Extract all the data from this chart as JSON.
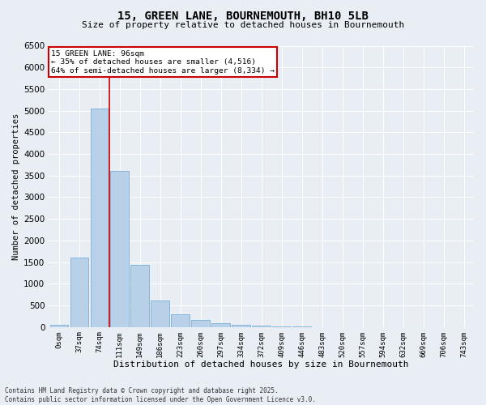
{
  "title_line1": "15, GREEN LANE, BOURNEMOUTH, BH10 5LB",
  "title_line2": "Size of property relative to detached houses in Bournemouth",
  "xlabel": "Distribution of detached houses by size in Bournemouth",
  "ylabel": "Number of detached properties",
  "bar_color": "#b8d0e8",
  "bar_edge_color": "#7aafd4",
  "background_color": "#e8eef4",
  "grid_color": "#ffffff",
  "annotation_box_color": "#cc0000",
  "vline_color": "#cc0000",
  "categories": [
    "0sqm",
    "37sqm",
    "74sqm",
    "111sqm",
    "149sqm",
    "186sqm",
    "223sqm",
    "260sqm",
    "297sqm",
    "334sqm",
    "372sqm",
    "409sqm",
    "446sqm",
    "483sqm",
    "520sqm",
    "557sqm",
    "594sqm",
    "632sqm",
    "669sqm",
    "706sqm",
    "743sqm"
  ],
  "values": [
    50,
    1600,
    5050,
    3600,
    1430,
    620,
    300,
    160,
    95,
    60,
    25,
    10,
    5,
    2,
    1,
    1,
    0,
    0,
    0,
    0,
    0
  ],
  "ylim": [
    0,
    6500
  ],
  "yticks": [
    0,
    500,
    1000,
    1500,
    2000,
    2500,
    3000,
    3500,
    4000,
    4500,
    5000,
    5500,
    6000,
    6500
  ],
  "annotation_text_line1": "15 GREEN LANE: 96sqm",
  "annotation_text_line2": "← 35% of detached houses are smaller (4,516)",
  "annotation_text_line3": "64% of semi-detached houses are larger (8,334) →",
  "footer_line1": "Contains HM Land Registry data © Crown copyright and database right 2025.",
  "footer_line2": "Contains public sector information licensed under the Open Government Licence v3.0.",
  "vline_x": 2.5
}
